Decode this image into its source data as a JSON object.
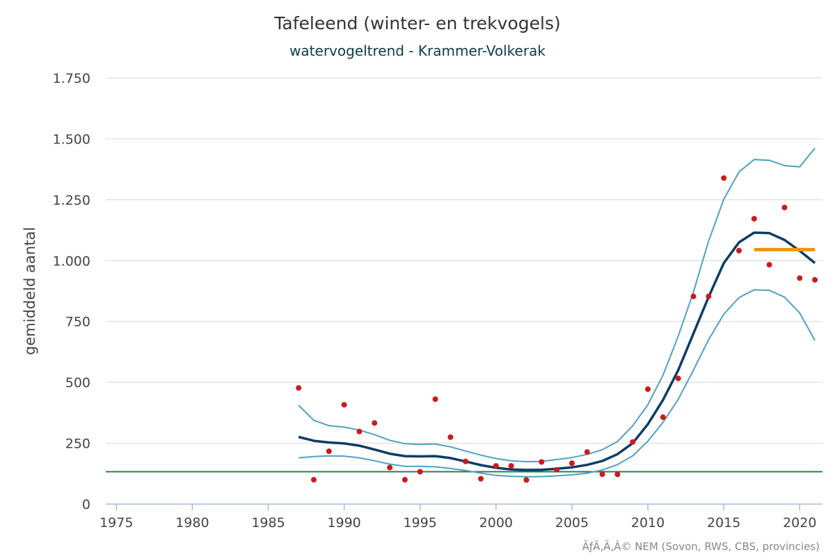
{
  "chart_data": {
    "type": "line",
    "title": "Tafeleend (winter- en trekvogels)",
    "subtitle": "watervogeltrend - Krammer-Volkerak",
    "xlabel": "",
    "ylabel": "gemiddeld aantal",
    "xlim": [
      1974.3,
      2021.5
    ],
    "ylim": [
      0,
      1750
    ],
    "x_ticks": [
      1975,
      1980,
      1985,
      1990,
      1995,
      2000,
      2005,
      2010,
      2015,
      2020
    ],
    "y_ticks": [
      0,
      250,
      500,
      750,
      1000,
      1250,
      1500,
      1750
    ],
    "y_tick_labels": [
      "0",
      "250",
      "500",
      "750",
      "1.000",
      "1.250",
      "1.500",
      "1.750"
    ],
    "grid": "horizontal",
    "credit": "ÃƒÂ‚Ã‚Â© NEM (Sovon, RWS, CBS, provincies)",
    "x": [
      1987,
      1988,
      1989,
      1990,
      1991,
      1992,
      1993,
      1994,
      1995,
      1996,
      1997,
      1998,
      1999,
      2000,
      2001,
      2002,
      2003,
      2004,
      2005,
      2006,
      2007,
      2008,
      2009,
      2010,
      2011,
      2012,
      2013,
      2014,
      2015,
      2016,
      2017,
      2018,
      2019,
      2020,
      2021
    ],
    "series": [
      {
        "kind": "trend",
        "color": "#0a3d66",
        "values": [
          276,
          260,
          253,
          249,
          240,
          224,
          207,
          197,
          196,
          197,
          189,
          175,
          160,
          149,
          142,
          140,
          141,
          145,
          151,
          161,
          177,
          205,
          250,
          328,
          428,
          550,
          700,
          850,
          990,
          1075,
          1115,
          1113,
          1085,
          1040,
          990
        ]
      },
      {
        "kind": "upper",
        "color": "#4fa1c4",
        "values": [
          406,
          344,
          322,
          316,
          304,
          285,
          262,
          248,
          245,
          247,
          235,
          218,
          201,
          187,
          178,
          174,
          175,
          183,
          191,
          204,
          223,
          257,
          321,
          408,
          530,
          690,
          870,
          1080,
          1252,
          1364,
          1415,
          1412,
          1390,
          1385,
          1462
        ]
      },
      {
        "kind": "lower",
        "color": "#4fa1c4",
        "values": [
          190,
          195,
          198,
          197,
          190,
          178,
          164,
          155,
          155,
          153,
          146,
          138,
          127,
          118,
          114,
          112,
          113,
          116,
          120,
          127,
          140,
          162,
          198,
          258,
          336,
          430,
          550,
          675,
          780,
          848,
          880,
          878,
          850,
          785,
          672
        ]
      },
      {
        "kind": "points",
        "color": "#cc1a1a",
        "values": [
          477,
          100,
          217,
          408,
          298,
          333,
          150,
          100,
          133,
          431,
          275,
          175,
          104,
          157,
          157,
          99,
          173,
          141,
          168,
          214,
          123,
          122,
          255,
          472,
          357,
          516,
          853,
          853,
          1339,
          1041,
          1172,
          983,
          1218,
          928,
          921
        ]
      },
      {
        "kind": "reference",
        "color": "#2a7d4f",
        "x_range": [
          1974.3,
          2021.5
        ],
        "value": 133
      },
      {
        "kind": "recent-level",
        "color": "#f0960f",
        "x_range": [
          2017,
          2021
        ],
        "value": 1045
      }
    ]
  }
}
